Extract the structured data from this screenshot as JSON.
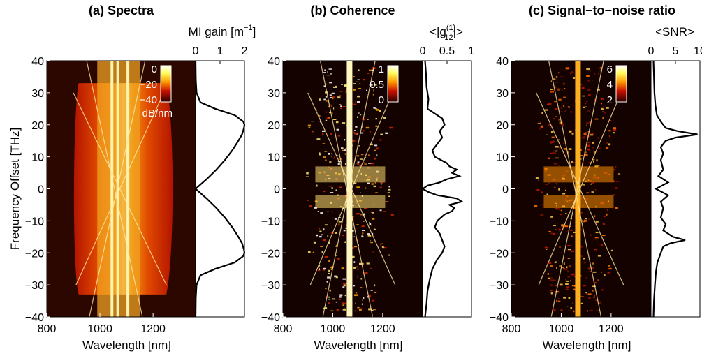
{
  "chart_data": [
    {
      "id": "a",
      "type": "heatmap",
      "title": "(a) Spectra",
      "xlabel": "Wavelength [nm]",
      "ylabel": "Frequency Offset [THz]",
      "xlim": [
        800,
        1360
      ],
      "ylim": [
        -40,
        40
      ],
      "xticks": [
        800,
        1000,
        1200
      ],
      "yticks": [
        -40,
        -30,
        -20,
        -10,
        0,
        10,
        20,
        30,
        40
      ],
      "colorbar": {
        "ticks": [
          "0",
          "−20",
          "−40"
        ],
        "values": [
          0,
          -20,
          -40
        ],
        "unit": "dB/nm",
        "range": [
          -40,
          0
        ]
      },
      "side_profile": {
        "label": "MI gain [m⁻¹]",
        "label_text": "MI gain [m",
        "label_sup": "−1",
        "label_end": "]",
        "xlim": [
          0,
          2
        ],
        "xticks": [
          "0",
          "1",
          "2"
        ],
        "y": [
          40,
          34,
          30,
          27,
          25,
          23,
          21,
          20,
          19,
          17,
          15,
          12,
          9,
          6,
          3,
          0,
          -3,
          -6,
          -9,
          -12,
          -15,
          -17,
          -19,
          -20,
          -21,
          -23,
          -25,
          -27,
          -30,
          -34,
          -40
        ],
        "x": [
          0.0,
          0.01,
          0.04,
          0.2,
          0.8,
          1.6,
          1.95,
          2.0,
          1.98,
          1.9,
          1.75,
          1.5,
          1.2,
          0.85,
          0.45,
          0.0,
          0.45,
          0.85,
          1.2,
          1.5,
          1.75,
          1.9,
          1.98,
          2.0,
          1.95,
          1.6,
          0.8,
          0.2,
          0.04,
          0.01,
          0.0
        ]
      }
    },
    {
      "id": "b",
      "type": "heatmap",
      "title": "(b) Coherence",
      "xlabel": "Wavelength [nm]",
      "ylabel": "",
      "xlim": [
        800,
        1360
      ],
      "ylim": [
        -40,
        40
      ],
      "xticks": [
        800,
        1000,
        1200
      ],
      "yticks": [
        -40,
        -30,
        -20,
        -10,
        0,
        10,
        20,
        30,
        40
      ],
      "colorbar": {
        "ticks": [
          "1",
          "0.5",
          "0"
        ],
        "values": [
          1,
          0.5,
          0
        ],
        "unit": "",
        "range": [
          0,
          1
        ]
      },
      "side_profile": {
        "label_text": "<|g",
        "label_sup": "(1)",
        "label_sub": "12",
        "label_end": "|>",
        "xlim": [
          0,
          1
        ],
        "xticks": [
          "0",
          "0.5",
          "1"
        ],
        "y": [
          40,
          36,
          32,
          28,
          25,
          22,
          20,
          18,
          16,
          14,
          12,
          10,
          8,
          7,
          6,
          5,
          4,
          3,
          2,
          1,
          0,
          -1,
          -2,
          -3,
          -4,
          -5,
          -6,
          -7,
          -8,
          -10,
          -12,
          -14,
          -16,
          -18,
          -20,
          -22,
          -25,
          -28,
          -32,
          -36,
          -40
        ],
        "x": [
          0.05,
          0.07,
          0.08,
          0.12,
          0.1,
          0.4,
          0.45,
          0.35,
          0.4,
          0.3,
          0.2,
          0.25,
          0.5,
          0.55,
          0.7,
          0.6,
          0.75,
          0.5,
          0.35,
          0.1,
          0.0,
          0.12,
          0.3,
          0.7,
          0.8,
          0.55,
          0.65,
          0.6,
          0.45,
          0.3,
          0.25,
          0.35,
          0.4,
          0.45,
          0.4,
          0.3,
          0.2,
          0.15,
          0.1,
          0.08,
          0.05
        ]
      }
    },
    {
      "id": "c",
      "type": "heatmap",
      "title": "(c) Signal−to−noise ratio",
      "xlabel": "Wavelength [nm]",
      "ylabel": "",
      "xlim": [
        800,
        1360
      ],
      "ylim": [
        -40,
        40
      ],
      "xticks": [
        800,
        1000,
        1200
      ],
      "yticks": [
        -40,
        -30,
        -20,
        -10,
        0,
        10,
        20,
        30,
        40
      ],
      "colorbar": {
        "ticks": [
          "6",
          "4",
          "2"
        ],
        "values": [
          6,
          4,
          2
        ],
        "unit": "",
        "range": [
          1,
          7
        ]
      },
      "side_profile": {
        "label_text": "<SNR>",
        "xlim": [
          0,
          10
        ],
        "xticks": [
          "0",
          "5",
          "10"
        ],
        "y": [
          40,
          35,
          30,
          26,
          23,
          21,
          19,
          18,
          17,
          16,
          15,
          13,
          11,
          9,
          6,
          4,
          2,
          0,
          -2,
          -4,
          -6,
          -9,
          -11,
          -13,
          -15,
          -16,
          -17,
          -18,
          -20,
          -23,
          -26,
          -30,
          -35,
          -40
        ],
        "x": [
          0.5,
          0.6,
          0.7,
          0.9,
          1.2,
          2.0,
          3.0,
          5.5,
          9.5,
          5.0,
          3.0,
          2.0,
          2.5,
          2.0,
          2.5,
          1.5,
          3.5,
          1.0,
          3.5,
          2.0,
          2.5,
          2.0,
          3.0,
          2.5,
          4.5,
          7.0,
          4.0,
          2.5,
          2.0,
          1.3,
          1.0,
          0.8,
          0.6,
          0.5
        ]
      }
    }
  ]
}
